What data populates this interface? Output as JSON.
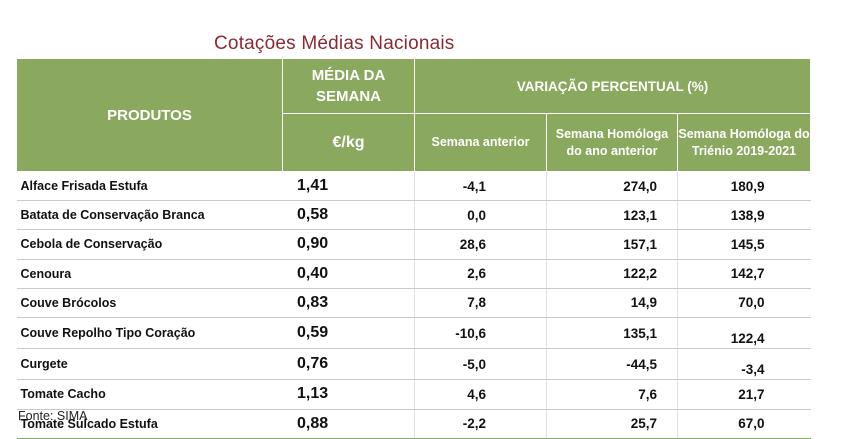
{
  "title": "Cotações Médias Nacionais",
  "header": {
    "produtos": "PRODUTOS",
    "media_semana": "MÉDIA DA SEMANA",
    "unit": "€/kg",
    "variacao": "VARIAÇÃO PERCENTUAL (%)",
    "sub_semana_anterior": "Semana anterior",
    "sub_homologa_ano": "Semana Homóloga do ano anterior",
    "sub_homologa_trienio": "Semana Homóloga do Triénio 2019-2021"
  },
  "rows": [
    {
      "produto": "Alface Frisada Estufa",
      "media": "1,41",
      "semana_anterior": "-4,1",
      "ano_anterior": "274,0",
      "trienio": "180,9"
    },
    {
      "produto": "Batata de Conservação Branca",
      "media": "0,58",
      "semana_anterior": "0,0",
      "ano_anterior": "123,1",
      "trienio": "138,9"
    },
    {
      "produto": "Cebola de Conservação",
      "media": "0,90",
      "semana_anterior": "28,6",
      "ano_anterior": "157,1",
      "trienio": "145,5"
    },
    {
      "produto": "Cenoura",
      "media": "0,40",
      "semana_anterior": "2,6",
      "ano_anterior": "122,2",
      "trienio": "142,7"
    },
    {
      "produto": "Couve Brócolos",
      "media": "0,83",
      "semana_anterior": "7,8",
      "ano_anterior": "14,9",
      "trienio": "70,0"
    },
    {
      "produto": "Couve Repolho Tipo Coração",
      "media": "0,59",
      "semana_anterior": "-10,6",
      "ano_anterior": "135,1",
      "trienio": "122,4"
    },
    {
      "produto": "Curgete",
      "media": "0,76",
      "semana_anterior": "-5,0",
      "ano_anterior": "-44,5",
      "trienio": "-3,4"
    },
    {
      "produto": "Tomate Cacho",
      "media": "1,13",
      "semana_anterior": "4,6",
      "ano_anterior": "7,6",
      "trienio": "21,7"
    },
    {
      "produto": "Tomate Sulcado Estufa",
      "media": "0,88",
      "semana_anterior": "-2,2",
      "ano_anterior": "25,7",
      "trienio": "67,0"
    }
  ],
  "source": "Fonte: SIMA",
  "colors": {
    "header_bg": "#8aa85e",
    "title": "#8b2a35"
  }
}
